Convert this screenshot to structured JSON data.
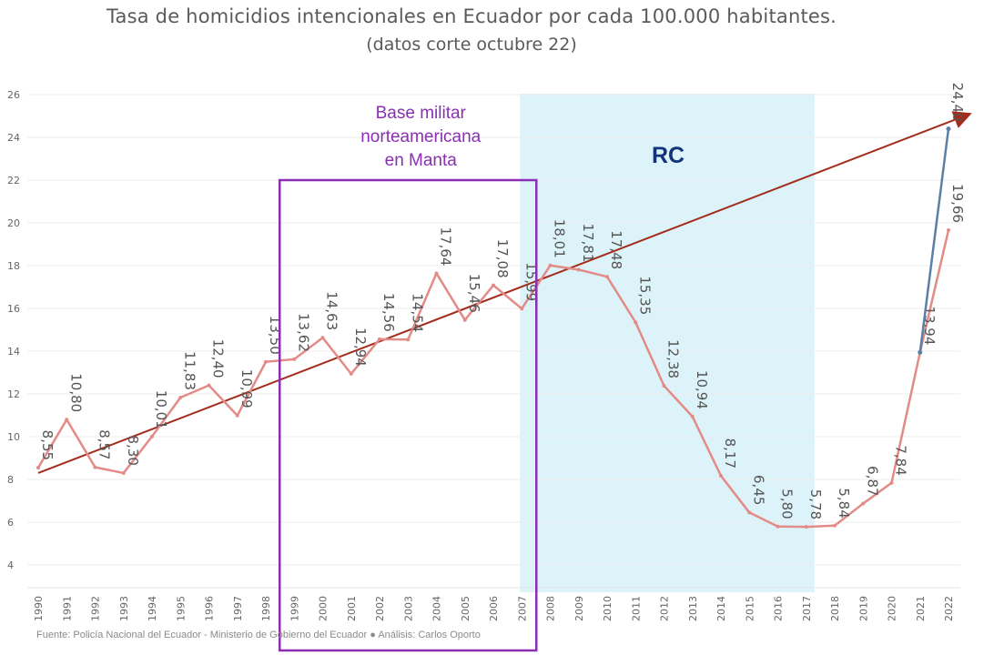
{
  "chart_data": {
    "type": "line",
    "title": "Tasa de homicidios intencionales en Ecuador por cada 100.000 habitantes.",
    "subtitle": "(datos corte octubre 22)",
    "yticks": [
      4,
      6,
      8,
      10,
      12,
      14,
      16,
      18,
      20,
      22,
      24,
      26
    ],
    "ylim": [
      3,
      26
    ],
    "grid": true,
    "categories": [
      "1990",
      "1991",
      "1992",
      "1993",
      "1994",
      "1995",
      "1996",
      "1997",
      "1998",
      "1999",
      "2000",
      "2001",
      "2002",
      "2003",
      "2004",
      "2005",
      "2006",
      "2007",
      "2008",
      "2009",
      "2010",
      "2011",
      "2012",
      "2013",
      "2014",
      "2015",
      "2016",
      "2017",
      "2018",
      "2019",
      "2020",
      "2021",
      "2022"
    ],
    "series": [
      {
        "color": "#e38b87",
        "values": [
          8.55,
          10.8,
          8.57,
          8.3,
          10.01,
          11.83,
          12.4,
          10.99,
          13.5,
          13.62,
          14.63,
          12.94,
          14.56,
          14.54,
          17.64,
          15.46,
          17.08,
          15.99,
          18.01,
          17.81,
          17.48,
          15.35,
          12.38,
          10.94,
          8.17,
          6.45,
          5.8,
          5.78,
          5.84,
          6.87,
          7.84,
          13.94,
          19.66
        ],
        "labels": [
          "8,55",
          "10,80",
          "8,57",
          "8,30",
          "10,01",
          "11,83",
          "12,40",
          "10,99",
          "13,50",
          "13,62",
          "14,63",
          "12,94",
          "14,56",
          "14,54",
          "17,64",
          "15,46",
          "17,08",
          "15,99",
          "18,01",
          "17,81",
          "17,48",
          "15,35",
          "12,38",
          "10,94",
          "8,17",
          "6,45",
          "5,80",
          "5,78",
          "5,84",
          "6,87",
          "7,84",
          "13,94",
          "19,66"
        ]
      },
      {
        "color": "#5b7fa6",
        "x": [
          "2021",
          "2022"
        ],
        "values": [
          13.94,
          24.4
        ],
        "labels": [
          "",
          "24,40"
        ]
      }
    ],
    "trend": {
      "from": [
        "1990",
        8.3
      ],
      "to": [
        "2022",
        24.9
      ],
      "color": "#a42c1c"
    },
    "annotations": [
      {
        "id": "base",
        "lines": [
          "Base militar",
          "norteamericana",
          "en Manta"
        ],
        "color": "#8a2fb3",
        "x_from": "1999",
        "x_to": "2007"
      },
      {
        "id": "rc",
        "text": "RC",
        "color": "#13347a",
        "x_from": "2007",
        "x_to": "2017"
      }
    ],
    "source": "Fuente: Policía Nacional del Ecuador - Ministerio de Gobierno del Ecuador ● Análisis: Carlos Oporto"
  }
}
